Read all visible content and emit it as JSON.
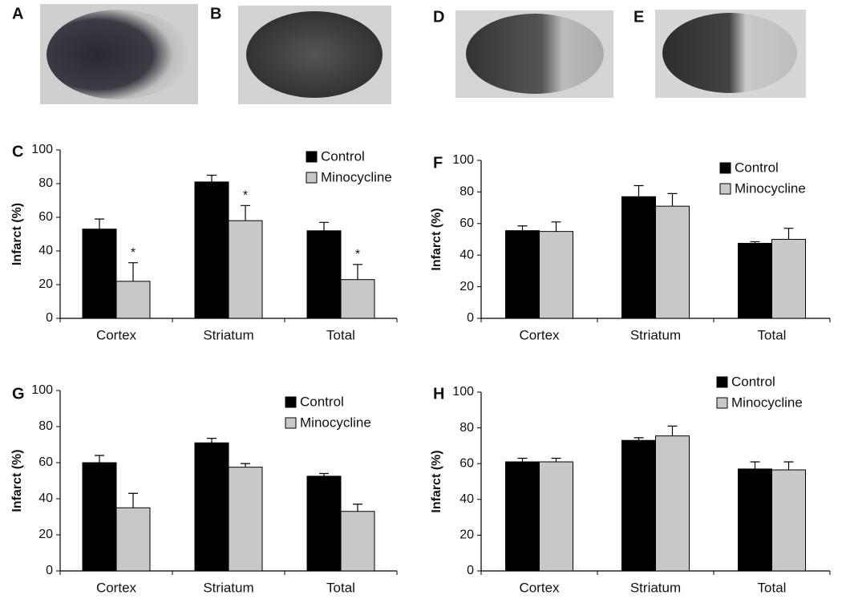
{
  "images": [
    {
      "label": "A"
    },
    {
      "label": "B"
    },
    {
      "label": "D"
    },
    {
      "label": "E"
    }
  ],
  "chart_data": [
    {
      "type": "bar",
      "label": "C",
      "ylabel": "Infarct (%)",
      "categories": [
        "Cortex",
        "Striatum",
        "Total"
      ],
      "series": [
        {
          "name": "Control",
          "color": "#000000",
          "values": [
            53,
            81,
            52
          ],
          "errors": [
            6,
            4,
            5
          ]
        },
        {
          "name": "Minocycline",
          "color": "#c8c8c8",
          "values": [
            22,
            58,
            23
          ],
          "errors": [
            11,
            9,
            9
          ],
          "annotations": [
            "*",
            "*",
            "*"
          ]
        }
      ],
      "ylim": [
        0,
        100
      ],
      "yticks": [
        0,
        20,
        40,
        60,
        80,
        100
      ],
      "legend": "upper right"
    },
    {
      "type": "bar",
      "label": "F",
      "ylabel": "Infarct (%)",
      "categories": [
        "Cortex",
        "Striatum",
        "Total"
      ],
      "series": [
        {
          "name": "Control",
          "color": "#000000",
          "values": [
            55.5,
            77,
            47.5
          ],
          "errors": [
            3,
            7,
            1
          ]
        },
        {
          "name": "Minocycline",
          "color": "#c8c8c8",
          "values": [
            55,
            71,
            50
          ],
          "errors": [
            6,
            8,
            7
          ]
        }
      ],
      "ylim": [
        0,
        100
      ],
      "yticks": [
        0,
        20,
        40,
        60,
        80,
        100
      ],
      "legend": "upper right"
    },
    {
      "type": "bar",
      "label": "G",
      "ylabel": "Infarct (%)",
      "categories": [
        "Cortex",
        "Striatum",
        "Total"
      ],
      "series": [
        {
          "name": "Control",
          "color": "#000000",
          "values": [
            60,
            71,
            52.5
          ],
          "errors": [
            4,
            2.5,
            1.5
          ]
        },
        {
          "name": "Minocycline",
          "color": "#c8c8c8",
          "values": [
            35,
            57.5,
            33
          ],
          "errors": [
            8,
            2,
            4
          ]
        }
      ],
      "ylim": [
        0,
        100
      ],
      "yticks": [
        0,
        20,
        40,
        60,
        80,
        100
      ],
      "legend": "upper right"
    },
    {
      "type": "bar",
      "label": "H",
      "ylabel": "Infarct (%)",
      "categories": [
        "Cortex",
        "Striatum",
        "Total"
      ],
      "series": [
        {
          "name": "Control",
          "color": "#000000",
          "values": [
            61,
            73,
            57
          ],
          "errors": [
            2,
            1.5,
            4
          ]
        },
        {
          "name": "Minocycline",
          "color": "#c8c8c8",
          "values": [
            61,
            75.5,
            56.5
          ],
          "errors": [
            2,
            5.5,
            4.5
          ]
        }
      ],
      "ylim": [
        0,
        100
      ],
      "yticks": [
        0,
        20,
        40,
        60,
        80,
        100
      ],
      "legend": "upper right"
    }
  ]
}
